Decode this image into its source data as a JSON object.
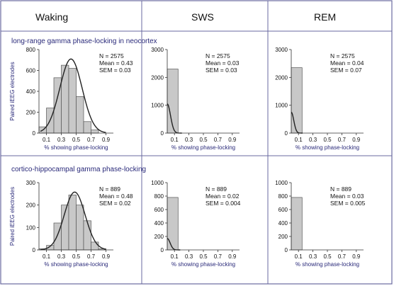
{
  "columns": [
    "Waking",
    "SWS",
    "REM"
  ],
  "rows": [
    {
      "label": "long-range gamma phase-locking in neocortex"
    },
    {
      "label": "cortico-hippocampal gamma phase-locking"
    }
  ],
  "colors": {
    "border": "#6a6aa0",
    "bar_fill": "#c8c8c8",
    "bar_stroke": "#555555",
    "curve": "#222222",
    "axis_text": "#2a2a7a"
  },
  "chart_data": [
    {
      "type": "bar",
      "id": "r0c0",
      "row": 0,
      "col": 0,
      "xlabel": "% showing phase-locking",
      "ylabel": "Paired iEEG electrodes",
      "xlim": [
        0,
        1.0
      ],
      "ylim": [
        0,
        800
      ],
      "xticks": [
        "0.1",
        "0.3",
        "0.5",
        "0.7",
        "0.9"
      ],
      "xtick_values": [
        0.1,
        0.3,
        0.5,
        0.7,
        0.9
      ],
      "yticks": [
        "0",
        "200",
        "400",
        "600",
        "800"
      ],
      "ytick_values": [
        0,
        200,
        400,
        600,
        800
      ],
      "bin_edges": [
        0,
        0.1,
        0.2,
        0.3,
        0.4,
        0.5,
        0.6,
        0.7,
        0.8,
        0.9
      ],
      "values": [
        60,
        240,
        530,
        650,
        620,
        350,
        110,
        30,
        0
      ],
      "fit_curve": {
        "type": "gaussian",
        "mean": 0.43,
        "sd": 0.15,
        "peak": 710
      },
      "stats": [
        "N = 2575",
        "Mean = 0.43",
        "SEM = 0.03"
      ]
    },
    {
      "type": "bar",
      "id": "r0c1",
      "row": 0,
      "col": 1,
      "xlabel": "% showing phase-locking",
      "ylabel": "",
      "xlim": [
        0,
        1.0
      ],
      "ylim": [
        0,
        3000
      ],
      "xticks": [
        "0.1",
        "0.3",
        "0.5",
        "0.7",
        "0.9"
      ],
      "xtick_values": [
        0.1,
        0.3,
        0.5,
        0.7,
        0.9
      ],
      "yticks": [
        "0",
        "1000",
        "2000",
        "3000"
      ],
      "ytick_values": [
        0,
        1000,
        2000,
        3000
      ],
      "bin_edges": [
        0,
        0.15
      ],
      "values": [
        2300
      ],
      "fit_curve": {
        "type": "half-gaussian",
        "mean": 0.0,
        "sd": 0.045,
        "peak": 1050
      },
      "stats": [
        "N = 2575",
        "Mean = 0.03",
        "SEM = 0.03"
      ]
    },
    {
      "type": "bar",
      "id": "r0c2",
      "row": 0,
      "col": 2,
      "xlabel": "% showing phase-locking",
      "ylabel": "",
      "xlim": [
        0,
        1.0
      ],
      "ylim": [
        0,
        3000
      ],
      "xticks": [
        "0.1",
        "0.3",
        "0.5",
        "0.7",
        "0.9"
      ],
      "xtick_values": [
        0.1,
        0.3,
        0.5,
        0.7,
        0.9
      ],
      "yticks": [
        "0",
        "1000",
        "2000",
        "3000"
      ],
      "ytick_values": [
        0,
        1000,
        2000,
        3000
      ],
      "bin_edges": [
        0,
        0.15
      ],
      "values": [
        2350
      ],
      "fit_curve": {
        "type": "half-gaussian",
        "mean": 0.0,
        "sd": 0.035,
        "peak": 750
      },
      "stats": [
        "N = 2575",
        "Mean = 0.04",
        "SEM = 0.07"
      ]
    },
    {
      "type": "bar",
      "id": "r1c0",
      "row": 1,
      "col": 0,
      "xlabel": "% showing phase-locking",
      "ylabel": "Paired iEEG electrodes",
      "xlim": [
        0,
        1.0
      ],
      "ylim": [
        0,
        300
      ],
      "xticks": [
        "0.1",
        "0.3",
        "0.5",
        "0.7",
        "0.9"
      ],
      "xtick_values": [
        0.1,
        0.3,
        0.5,
        0.7,
        0.9
      ],
      "yticks": [
        "0",
        "100",
        "200",
        "300"
      ],
      "ytick_values": [
        0,
        100,
        200,
        300
      ],
      "bin_edges": [
        0,
        0.1,
        0.2,
        0.3,
        0.4,
        0.5,
        0.6,
        0.7,
        0.8,
        0.9
      ],
      "values": [
        5,
        20,
        120,
        200,
        245,
        200,
        130,
        35,
        5
      ],
      "fit_curve": {
        "type": "gaussian",
        "mean": 0.48,
        "sd": 0.14,
        "peak": 258
      },
      "stats": [
        "N = 889",
        "Mean = 0.48",
        "SEM = 0.02"
      ]
    },
    {
      "type": "bar",
      "id": "r1c1",
      "row": 1,
      "col": 1,
      "xlabel": "% showing phase-locking",
      "ylabel": "",
      "xlim": [
        0,
        1.0
      ],
      "ylim": [
        0,
        1000
      ],
      "xticks": [
        "0.1",
        "0.3",
        "0.5",
        "0.7",
        "0.9"
      ],
      "xtick_values": [
        0.1,
        0.3,
        0.5,
        0.7,
        0.9
      ],
      "yticks": [
        "0",
        "200",
        "400",
        "600",
        "800",
        "1000"
      ],
      "ytick_values": [
        0,
        200,
        400,
        600,
        800,
        1000
      ],
      "bin_edges": [
        0,
        0.15
      ],
      "values": [
        780
      ],
      "fit_curve": {
        "type": "half-gaussian",
        "mean": 0.0,
        "sd": 0.04,
        "peak": 170
      },
      "stats": [
        "N = 889",
        "Mean = 0.02",
        "SEM = 0.004"
      ]
    },
    {
      "type": "bar",
      "id": "r1c2",
      "row": 1,
      "col": 2,
      "xlabel": "% showing phase-locking",
      "ylabel": "",
      "xlim": [
        0,
        1.0
      ],
      "ylim": [
        0,
        1000
      ],
      "xticks": [
        "0.1",
        "0.3",
        "0.5",
        "0.7",
        "0.9"
      ],
      "xtick_values": [
        0.1,
        0.3,
        0.5,
        0.7,
        0.9
      ],
      "yticks": [
        "0",
        "200",
        "400",
        "600",
        "800",
        "1000"
      ],
      "ytick_values": [
        0,
        200,
        400,
        600,
        800,
        1000
      ],
      "bin_edges": [
        0,
        0.15
      ],
      "values": [
        780
      ],
      "fit_curve": null,
      "stats": [
        "N = 889",
        "Mean = 0.03",
        "SEM = 0.005"
      ]
    }
  ]
}
